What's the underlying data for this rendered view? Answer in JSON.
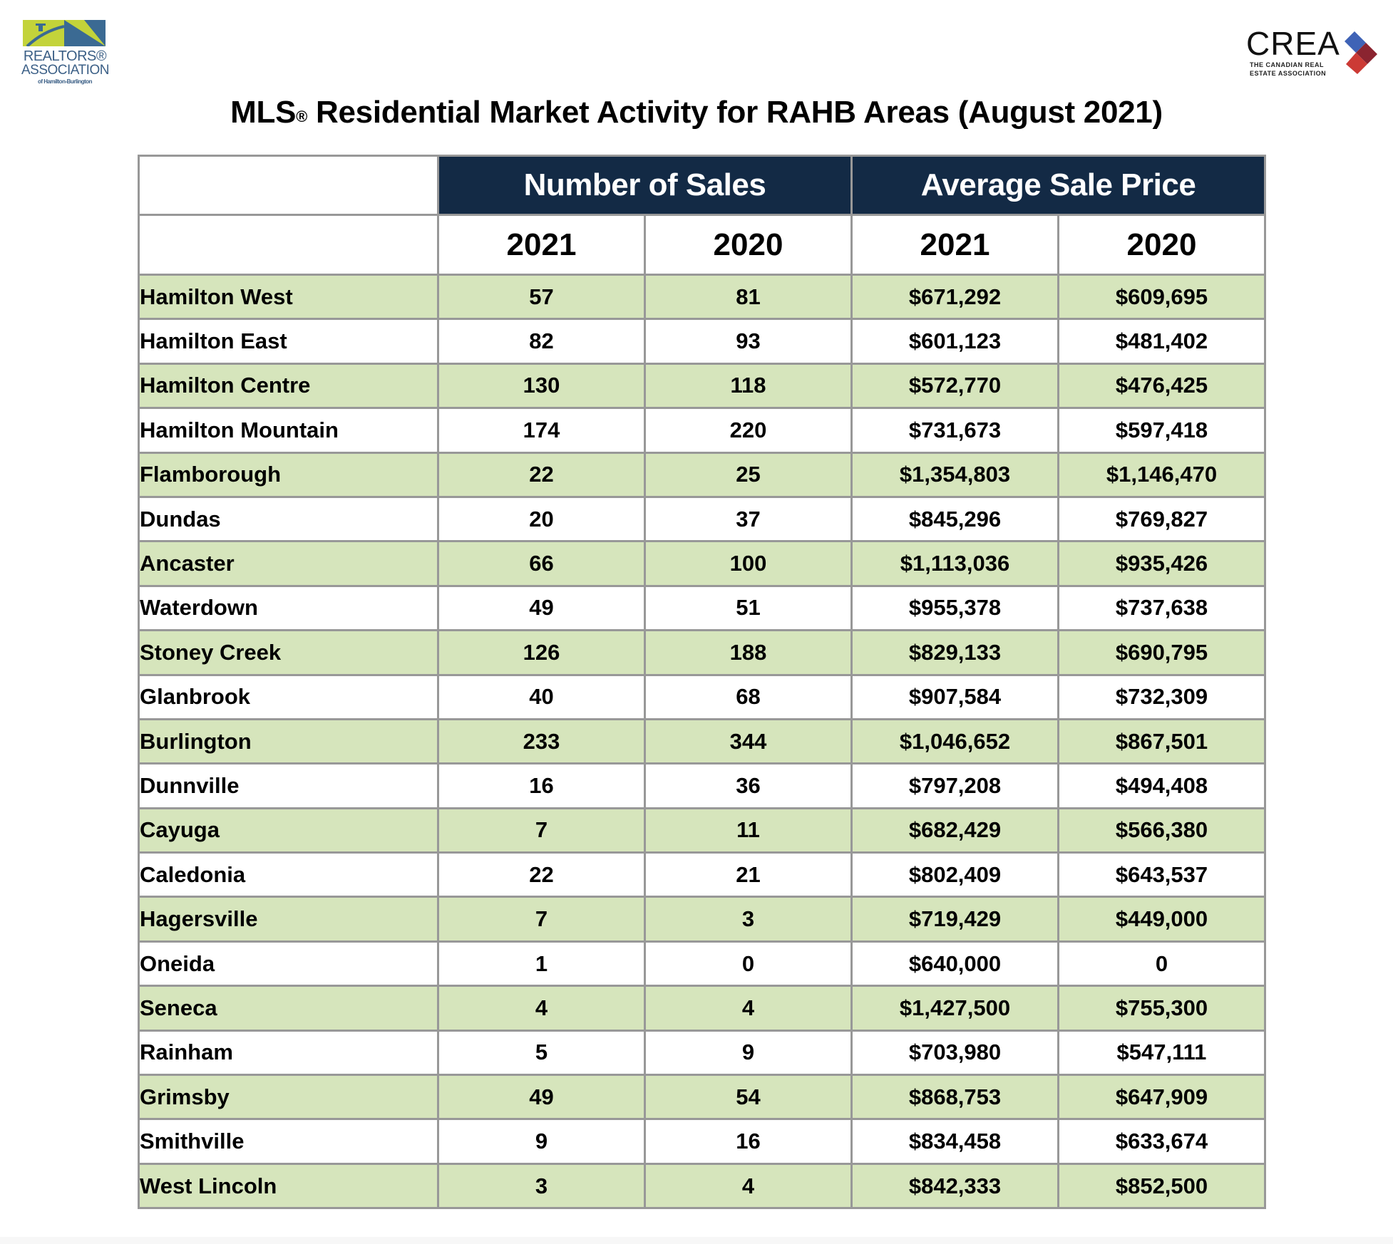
{
  "logos": {
    "rahb": {
      "line1": "REALTORS®",
      "line2": "ASSOCIATION",
      "line3": "of Hamilton-Burlington",
      "colors": {
        "green": "#c3d33a",
        "blue": "#3b6a93",
        "text": "#3b5f86"
      }
    },
    "crea": {
      "word": "CREA",
      "sub1": "THE CANADIAN REAL",
      "sub2": "ESTATE ASSOCIATION",
      "colors": {
        "blue": "#3f63b6",
        "maroon": "#8b2430",
        "red": "#cc3a35"
      }
    }
  },
  "title": {
    "prefix": "MLS",
    "reg": "®",
    "rest": " Residential Market Activity for RAHB Areas (August 2021)"
  },
  "table": {
    "header_color": "#132a45",
    "alt_row_color": "#d6e5bc",
    "groups": [
      "Number of Sales",
      "Average Sale Price"
    ],
    "years": [
      "2021",
      "2020",
      "2021",
      "2020"
    ],
    "rows": [
      {
        "area": "Hamilton West",
        "sales_2021": "57",
        "sales_2020": "81",
        "price_2021": "$671,292",
        "price_2020": "$609,695"
      },
      {
        "area": "Hamilton East",
        "sales_2021": "82",
        "sales_2020": "93",
        "price_2021": "$601,123",
        "price_2020": "$481,402"
      },
      {
        "area": "Hamilton Centre",
        "sales_2021": "130",
        "sales_2020": "118",
        "price_2021": "$572,770",
        "price_2020": "$476,425"
      },
      {
        "area": "Hamilton Mountain",
        "sales_2021": "174",
        "sales_2020": "220",
        "price_2021": "$731,673",
        "price_2020": "$597,418"
      },
      {
        "area": "Flamborough",
        "sales_2021": "22",
        "sales_2020": "25",
        "price_2021": "$1,354,803",
        "price_2020": "$1,146,470"
      },
      {
        "area": "Dundas",
        "sales_2021": "20",
        "sales_2020": "37",
        "price_2021": "$845,296",
        "price_2020": "$769,827"
      },
      {
        "area": "Ancaster",
        "sales_2021": "66",
        "sales_2020": "100",
        "price_2021": "$1,113,036",
        "price_2020": "$935,426"
      },
      {
        "area": "Waterdown",
        "sales_2021": "49",
        "sales_2020": "51",
        "price_2021": "$955,378",
        "price_2020": "$737,638"
      },
      {
        "area": "Stoney Creek",
        "sales_2021": "126",
        "sales_2020": "188",
        "price_2021": "$829,133",
        "price_2020": "$690,795"
      },
      {
        "area": "Glanbrook",
        "sales_2021": "40",
        "sales_2020": "68",
        "price_2021": "$907,584",
        "price_2020": "$732,309"
      },
      {
        "area": "Burlington",
        "sales_2021": "233",
        "sales_2020": "344",
        "price_2021": "$1,046,652",
        "price_2020": "$867,501"
      },
      {
        "area": "Dunnville",
        "sales_2021": "16",
        "sales_2020": "36",
        "price_2021": "$797,208",
        "price_2020": "$494,408"
      },
      {
        "area": "Cayuga",
        "sales_2021": "7",
        "sales_2020": "11",
        "price_2021": "$682,429",
        "price_2020": "$566,380"
      },
      {
        "area": "Caledonia",
        "sales_2021": "22",
        "sales_2020": "21",
        "price_2021": "$802,409",
        "price_2020": "$643,537"
      },
      {
        "area": "Hagersville",
        "sales_2021": "7",
        "sales_2020": "3",
        "price_2021": "$719,429",
        "price_2020": "$449,000"
      },
      {
        "area": "Oneida",
        "sales_2021": "1",
        "sales_2020": "0",
        "price_2021": "$640,000",
        "price_2020": "0"
      },
      {
        "area": "Seneca",
        "sales_2021": "4",
        "sales_2020": "4",
        "price_2021": "$1,427,500",
        "price_2020": "$755,300"
      },
      {
        "area": "Rainham",
        "sales_2021": "5",
        "sales_2020": "9",
        "price_2021": "$703,980",
        "price_2020": "$547,111"
      },
      {
        "area": "Grimsby",
        "sales_2021": "49",
        "sales_2020": "54",
        "price_2021": "$868,753",
        "price_2020": "$647,909"
      },
      {
        "area": "Smithville",
        "sales_2021": "9",
        "sales_2020": "16",
        "price_2021": "$834,458",
        "price_2020": "$633,674"
      },
      {
        "area": "West Lincoln",
        "sales_2021": "3",
        "sales_2020": "4",
        "price_2021": "$842,333",
        "price_2020": "$852,500"
      }
    ]
  }
}
